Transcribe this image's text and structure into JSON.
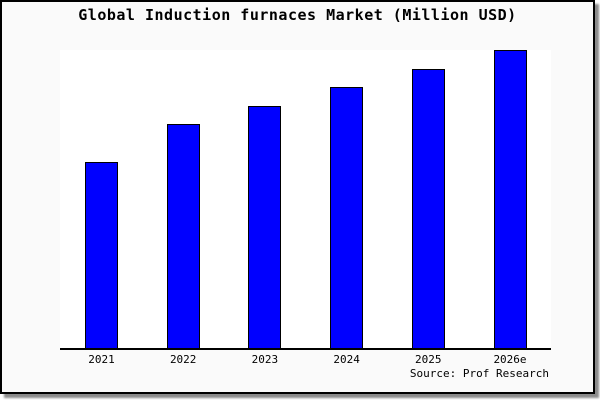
{
  "chart_card": {
    "title": "Global Induction furnaces Market (Million USD)",
    "source_label": "Source: Prof Research"
  },
  "chart_data": {
    "type": "bar",
    "title": "Global Induction furnaces Market (Million USD)",
    "categories": [
      "2021",
      "2022",
      "2023",
      "2024",
      "2025",
      "2026e"
    ],
    "values": [
      100,
      120,
      130,
      140,
      150,
      160
    ],
    "xlabel": "",
    "ylabel": "",
    "ylim": [
      0,
      160
    ],
    "grid": false,
    "legend": false,
    "annotations": [
      "Source: Prof Research"
    ],
    "bar_color": "#0000ff",
    "bar_edge_color": "#000000",
    "plot_bg": "#ffffff",
    "card_bg": "#fafafa"
  }
}
